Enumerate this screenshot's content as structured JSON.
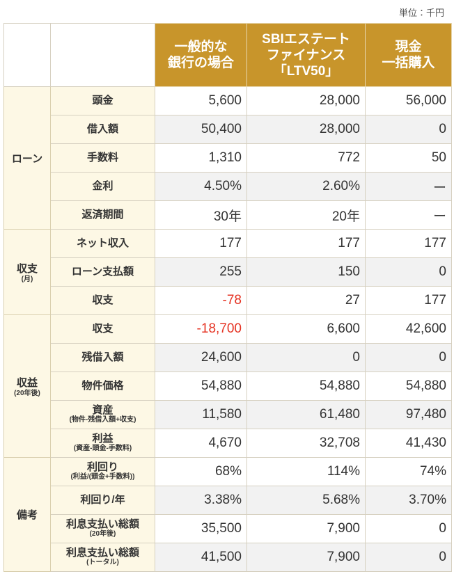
{
  "unit": "単位：千円",
  "columns": [
    [
      "一般的な",
      "銀行の場合"
    ],
    [
      "SBIエステート",
      "ファイナンス",
      "「LTV50」"
    ],
    [
      "現金",
      "一括購入"
    ]
  ],
  "groups": [
    {
      "label": "ローン",
      "rows": [
        {
          "label": "頭金",
          "values": [
            "5,600",
            "28,000",
            "56,000"
          ]
        },
        {
          "label": "借入額",
          "values": [
            "50,400",
            "28,000",
            "0"
          ]
        },
        {
          "label": "手数料",
          "values": [
            "1,310",
            "772",
            "50"
          ]
        },
        {
          "label": "金利",
          "values": [
            "4.50%",
            "2.60%",
            "ー"
          ]
        },
        {
          "label": "返済期間",
          "values": [
            "30年",
            "20年",
            "ー"
          ]
        }
      ]
    },
    {
      "label": "収支",
      "note": "(月)",
      "rows": [
        {
          "label": "ネット収入",
          "values": [
            "177",
            "177",
            "177"
          ]
        },
        {
          "label": "ローン支払額",
          "values": [
            "255",
            "150",
            "0"
          ]
        },
        {
          "label": "収支",
          "values": [
            "-78",
            "27",
            "177"
          ]
        }
      ]
    },
    {
      "label": "収益",
      "note": "(20年後)",
      "rows": [
        {
          "label": "収支",
          "values": [
            "-18,700",
            "6,600",
            "42,600"
          ]
        },
        {
          "label": "残借入額",
          "values": [
            "24,600",
            "0",
            "0"
          ]
        },
        {
          "label": "物件価格",
          "values": [
            "54,880",
            "54,880",
            "54,880"
          ]
        },
        {
          "label": "資産",
          "note": "(物件-残借入額+収支)",
          "values": [
            "11,580",
            "61,480",
            "97,480"
          ]
        },
        {
          "label": "利益",
          "note": "(資産-頭金-手数料)",
          "values": [
            "4,670",
            "32,708",
            "41,430"
          ]
        }
      ]
    },
    {
      "label": "備考",
      "rows": [
        {
          "label": "利回り",
          "note": "(利益/(頭金+手数料))",
          "values": [
            "68%",
            "114%",
            "74%"
          ]
        },
        {
          "label": "利回り/年",
          "values": [
            "3.38%",
            "5.68%",
            "3.70%"
          ]
        },
        {
          "label": "利息支払い総額",
          "note": "(20年後)",
          "values": [
            "35,500",
            "7,900",
            "0"
          ]
        },
        {
          "label": "利息支払い総額",
          "note": "(トータル)",
          "values": [
            "41,500",
            "7,900",
            "0"
          ]
        }
      ]
    }
  ]
}
